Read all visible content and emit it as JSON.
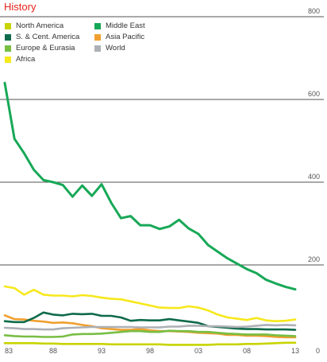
{
  "chart_data": {
    "type": "line",
    "title": "History",
    "xlabel": "",
    "ylabel": "",
    "x": [
      1983,
      1984,
      1985,
      1986,
      1987,
      1988,
      1989,
      1990,
      1991,
      1992,
      1993,
      1994,
      1995,
      1996,
      1997,
      1998,
      1999,
      2000,
      2001,
      2002,
      2003,
      2004,
      2005,
      2006,
      2007,
      2008,
      2009,
      2010,
      2011,
      2012,
      2013
    ],
    "x_tick_labels": [
      "83",
      "88",
      "93",
      "98",
      "03",
      "08",
      "13"
    ],
    "y_tick_labels": [
      "0",
      "200",
      "400",
      "600",
      "800"
    ],
    "ylim": [
      0,
      800
    ],
    "grid": "horizontal",
    "legend_placement": "top-left",
    "series": [
      {
        "name": "North America",
        "color": "#c8d400",
        "values": [
          11,
          11,
          11,
          11,
          10,
          10,
          9,
          9,
          9,
          9,
          9,
          8,
          8,
          8,
          8,
          8,
          8,
          7,
          7,
          7,
          7,
          7,
          8,
          8,
          8,
          9,
          9,
          10,
          11,
          12,
          12
        ]
      },
      {
        "name": "S. & Cent. America",
        "color": "#0f6b4a",
        "values": [
          64,
          62,
          62,
          72,
          85,
          80,
          78,
          82,
          81,
          82,
          77,
          77,
          73,
          65,
          67,
          66,
          66,
          69,
          66,
          63,
          60,
          52,
          50,
          48,
          46,
          45,
          45,
          44,
          44,
          44,
          43
        ]
      },
      {
        "name": "Europe & Eurasia",
        "color": "#78be43",
        "values": [
          30,
          28,
          27,
          27,
          26,
          26,
          27,
          32,
          33,
          33,
          34,
          36,
          38,
          40,
          40,
          38,
          38,
          41,
          40,
          40,
          38,
          38,
          36,
          34,
          33,
          32,
          32,
          32,
          30,
          29,
          28
        ]
      },
      {
        "name": "Africa",
        "color": "#f7e81c",
        "values": [
          148,
          144,
          128,
          140,
          128,
          126,
          126,
          124,
          127,
          125,
          121,
          118,
          117,
          112,
          107,
          102,
          97,
          96,
          96,
          100,
          97,
          90,
          80,
          73,
          70,
          67,
          72,
          66,
          64,
          65,
          68
        ]
      },
      {
        "name": "Middle East",
        "color": "#17a857",
        "values": [
          640,
          505,
          470,
          430,
          405,
          400,
          393,
          365,
          392,
          367,
          395,
          350,
          313,
          318,
          296,
          296,
          287,
          293,
          309,
          288,
          275,
          248,
          232,
          216,
          203,
          190,
          180,
          164,
          155,
          147,
          141
        ]
      },
      {
        "name": "Asia Pacific",
        "color": "#f0a030",
        "values": [
          78,
          69,
          68,
          65,
          63,
          60,
          61,
          59,
          55,
          52,
          47,
          45,
          43,
          43,
          45,
          42,
          40,
          40,
          39,
          38,
          36,
          35,
          34,
          31,
          31,
          29,
          29,
          28,
          26,
          25,
          25
        ]
      },
      {
        "name": "World",
        "color": "#adb0b5",
        "values": [
          48,
          47,
          45,
          45,
          44,
          44,
          47,
          48,
          49,
          50,
          50,
          50,
          50,
          50,
          49,
          49,
          49,
          51,
          51,
          53,
          53,
          52,
          52,
          51,
          50,
          51,
          53,
          55,
          54,
          55,
          54
        ]
      }
    ]
  }
}
